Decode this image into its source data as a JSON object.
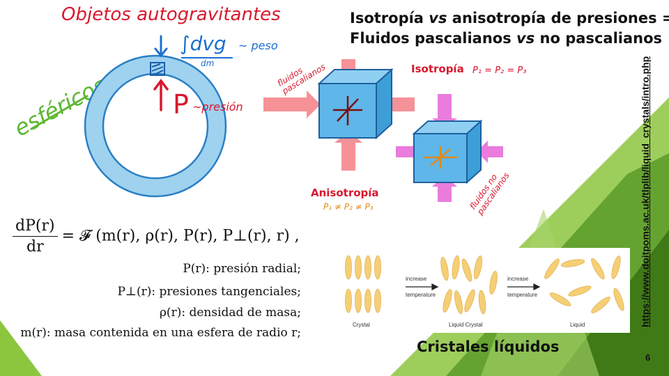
{
  "header": {
    "title_iso": "Isotropía ",
    "title_vs1": "vs",
    "title_rest1": " anisotropía de presiones =",
    "title_line2a": "Fluidos pascalianos ",
    "title_vs2": "vs",
    "title_line2b": " no pascalianos"
  },
  "handwritten": {
    "objetos": "Objetos autogravitantes",
    "esfericos": "esféricos",
    "weight_expr": "∫dvg",
    "weight_sub": "dm",
    "peso": "~ peso",
    "p_symbol": "P",
    "presion": "~presión",
    "fluidos_pascalianos": "fluidos pascalianos",
    "isotropia": "Isotropía",
    "isotropia_eq": "P₁ = P₂ = P₃",
    "anisotropia": "Anisotropía",
    "anisotropia_eq": "P₁ ≠ P₂ ≠ P₃",
    "fluidos_no_pascalianos": "fluidos no pascalianos"
  },
  "equation": {
    "numerator": "dP(r)",
    "denominator": "dr",
    "rhs": "= 𝓕 (m(r), ρ(r), P(r), P⊥(r), r) ,"
  },
  "definitions": [
    "P(r): presión radial;",
    "P⊥(r): presiones tangenciales;",
    "ρ(r): densidad de masa;",
    "m(r): masa contenida en una esfera de radio r;"
  ],
  "liquid_crystals": {
    "title": "Cristales líquidos",
    "crystal": "Crystal",
    "liquid_crystal": "Liquid Crystal",
    "liquid": "Liquid",
    "arrow1_top": "increase",
    "arrow1_bottom": "temperature",
    "arrow2_top": "increase",
    "arrow2_bottom": "temperature"
  },
  "url": "https://www.doitpoms.ac.uk/tlplib/liquid_crystals/intro.php",
  "page_number": "6",
  "colors": {
    "green_dark": "#4e8a1e",
    "green_light": "#8cc63f",
    "ring_blue": "#9ed2ef",
    "cube_blue": "#5fb6e8",
    "hand_red": "#d8192d",
    "arrow_salmon": "#f47f85",
    "arrow_magenta": "#e666d6",
    "rod_yellow": "#f5cf75"
  }
}
